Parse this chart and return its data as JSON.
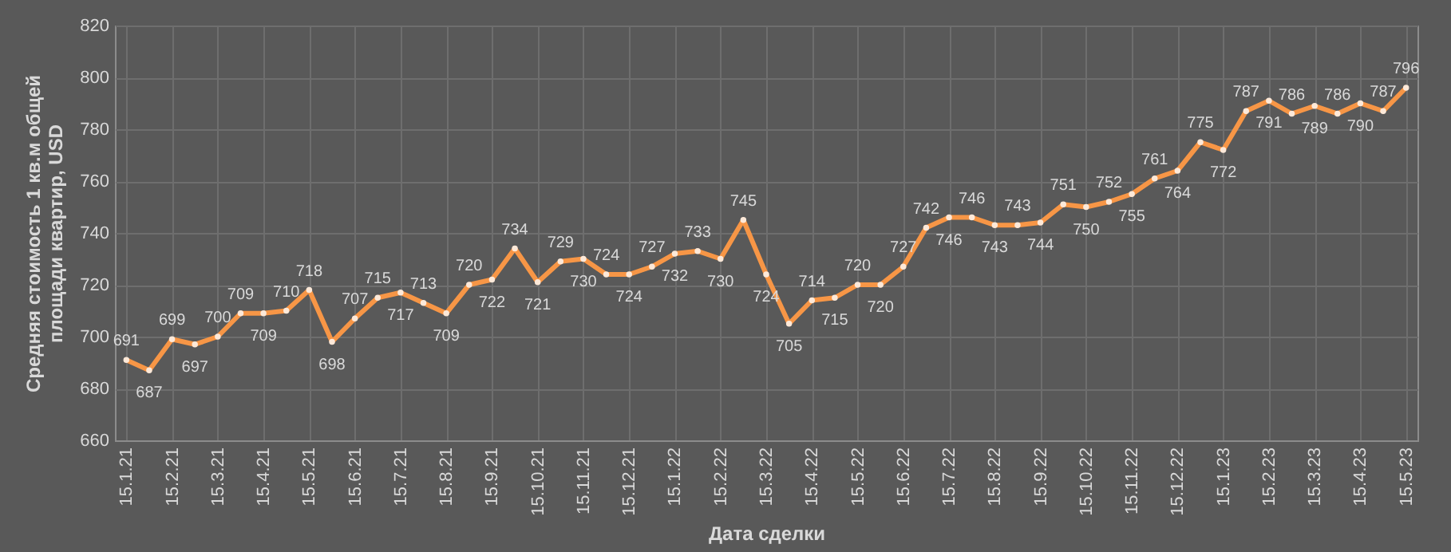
{
  "chart_data": {
    "type": "line",
    "xlabel": "Дата сделки",
    "ylabel": "Средняя стоимость 1 кв.м общей площади квартир, USD",
    "categories": [
      "15.1.21",
      null,
      "15.2.21",
      null,
      "15.3.21",
      null,
      "15.4.21",
      null,
      "15.5.21",
      null,
      "15.6.21",
      null,
      "15.7.21",
      null,
      "15.8.21",
      null,
      "15.9.21",
      null,
      "15.10.21",
      null,
      "15.11.21",
      null,
      "15.12.21",
      null,
      "15.1.22",
      null,
      "15.2.22",
      null,
      "15.3.22",
      null,
      "15.4.22",
      null,
      "15.5.22",
      null,
      "15.6.22",
      null,
      "15.7.22",
      null,
      "15.8.22",
      null,
      "15.9.22",
      null,
      "15.10.22",
      null,
      "15.11.22",
      null,
      "15.12.22",
      null,
      "15.1.23",
      null,
      "15.2.23",
      null,
      "15.3.23",
      null,
      "15.4.23",
      null,
      "15.5.23"
    ],
    "series": [
      {
        "color": "#f79646",
        "values": [
          691,
          687,
          699,
          697,
          700,
          709,
          709,
          710,
          718,
          698,
          707,
          715,
          717,
          713,
          709,
          720,
          722,
          734,
          721,
          729,
          730,
          724,
          724,
          727,
          732,
          733,
          730,
          745,
          724,
          705,
          714,
          715,
          720,
          720,
          727,
          742,
          746,
          746,
          743,
          743,
          744,
          751,
          750,
          752,
          755,
          761,
          764,
          775,
          772,
          787,
          791,
          786,
          789,
          786,
          790,
          787,
          796
        ]
      }
    ],
    "ylim": [
      660,
      820
    ],
    "yticks": [
      660,
      680,
      700,
      720,
      740,
      760,
      780,
      800,
      820
    ],
    "grid": true,
    "marker": "circle",
    "line_style": "solid",
    "data_labels": true
  }
}
